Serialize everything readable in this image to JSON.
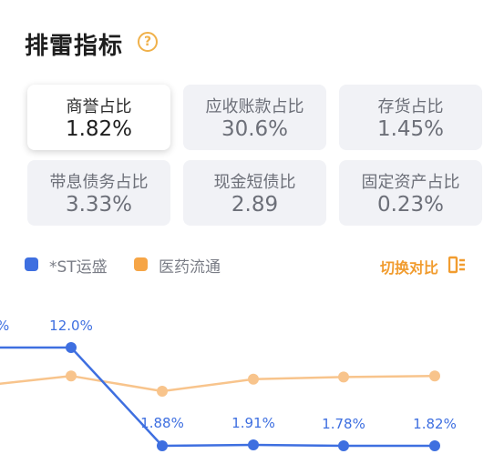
{
  "header": {
    "title": "排雷指标",
    "help_icon": "question-circle-icon"
  },
  "metrics": [
    {
      "label": "商誉占比",
      "value": "1.82%",
      "selected": true
    },
    {
      "label": "应收账款占比",
      "value": "30.6%",
      "selected": false
    },
    {
      "label": "存货占比",
      "value": "1.45%",
      "selected": false
    },
    {
      "label": "带息债务占比",
      "value": "3.33%",
      "selected": false
    },
    {
      "label": "现金短债比",
      "value": "2.89",
      "selected": false
    },
    {
      "label": "固定资产占比",
      "value": "0.23%",
      "selected": false
    }
  ],
  "legend": {
    "series_a": {
      "label": "*ST运盛",
      "color": "#3e6fe0"
    },
    "series_b": {
      "label": "医药流通",
      "color": "#f6a546"
    }
  },
  "switch_label": "切换对比",
  "switch_icon": "switch-compare-icon",
  "chart_data": {
    "type": "line",
    "series": [
      {
        "name": "*ST运盛",
        "values": [
          12.0,
          12.0,
          1.88,
          1.91,
          1.78,
          1.82
        ],
        "labels": [
          "%",
          "12.0%",
          "1.88%",
          "1.91%",
          "1.78%",
          "1.82%"
        ],
        "color": "#3e6fe0"
      },
      {
        "name": "医药流通",
        "values": [
          7.4,
          8.3,
          6.9,
          8.0,
          8.2,
          8.3
        ],
        "color": "#f8c48c"
      }
    ]
  }
}
